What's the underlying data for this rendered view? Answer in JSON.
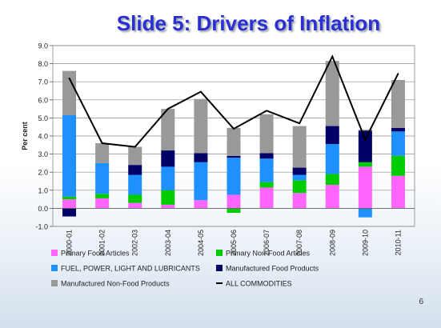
{
  "title": "Slide 5: Drivers of Inflation",
  "page_number": "6",
  "chart_data": {
    "type": "bar",
    "stacked": true,
    "ylabel": "Per cent",
    "ylim": [
      -1.0,
      9.0
    ],
    "yticks": [
      "-1.0",
      "0.0",
      "1.0",
      "2.0",
      "3.0",
      "4.0",
      "5.0",
      "6.0",
      "7.0",
      "8.0",
      "9.0"
    ],
    "grid": true,
    "legend_position": "bottom",
    "categories": [
      "2000-01",
      "2001-02",
      "2002-03",
      "2003-04",
      "2004-05",
      "2005-06",
      "2006-07",
      "2007-08",
      "2008-09",
      "2009-10",
      "2010-11"
    ],
    "series": [
      {
        "name": "Primary Food Articles",
        "color": "#ff66ff",
        "values": [
          0.5,
          0.55,
          0.3,
          0.2,
          0.45,
          0.75,
          1.15,
          0.85,
          1.3,
          2.3,
          1.8
        ]
      },
      {
        "name": "Primary Non-Food Articles",
        "color": "#00cc00",
        "values": [
          0.15,
          0.25,
          0.45,
          0.8,
          0.0,
          -0.25,
          0.3,
          0.7,
          0.6,
          0.25,
          1.1
        ]
      },
      {
        "name": "FUEL, POWER, LIGHT AND LUBRICANTS",
        "color": "#1e90ff",
        "values": [
          4.5,
          1.7,
          1.1,
          1.3,
          2.1,
          2.05,
          1.3,
          0.3,
          1.65,
          -0.5,
          1.35
        ]
      },
      {
        "name": "Manufactured Food Products",
        "color": "#000066",
        "values": [
          -0.45,
          0.0,
          0.55,
          0.9,
          0.5,
          0.1,
          0.3,
          0.4,
          1.0,
          1.75,
          0.2
        ]
      },
      {
        "name": "Manufactured Non-Food Products",
        "color": "#999999",
        "values": [
          2.45,
          1.1,
          1.0,
          2.3,
          3.0,
          1.55,
          2.15,
          2.3,
          3.6,
          0.05,
          2.65
        ]
      },
      {
        "name": "ALL COMMODITIES",
        "type": "line",
        "color": "#000000",
        "values": [
          7.2,
          3.6,
          3.4,
          5.5,
          6.45,
          4.4,
          5.4,
          4.7,
          8.4,
          3.8,
          7.45
        ]
      }
    ]
  }
}
